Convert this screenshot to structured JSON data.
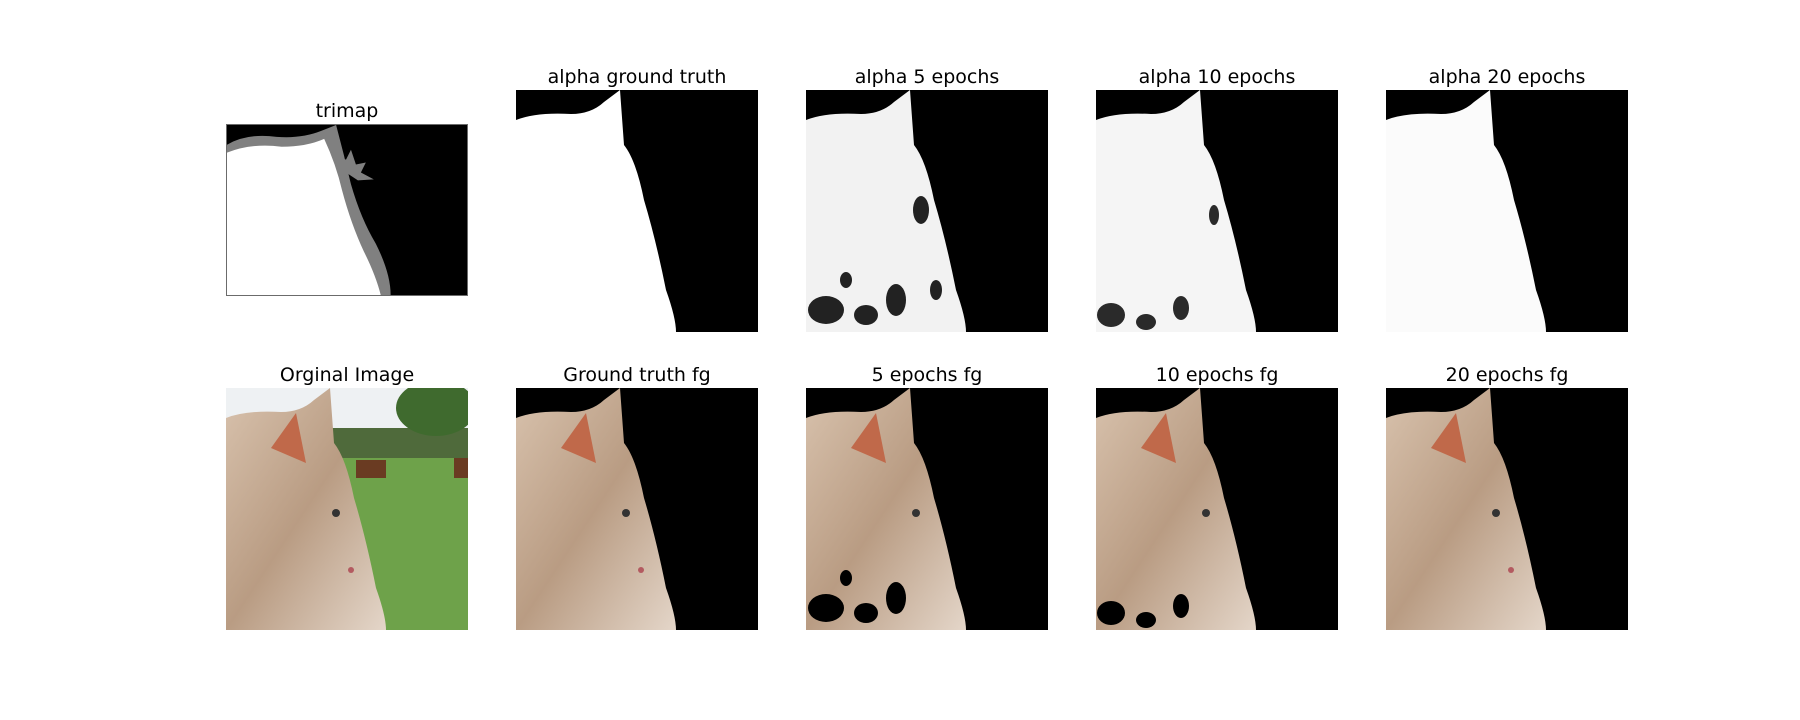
{
  "figure": {
    "row1": [
      {
        "title": "trimap",
        "kind": "trimap"
      },
      {
        "title": "alpha ground truth",
        "kind": "alpha-gt"
      },
      {
        "title": "alpha 5 epochs",
        "kind": "alpha-5"
      },
      {
        "title": "alpha 10 epochs",
        "kind": "alpha-10"
      },
      {
        "title": "alpha 20 epochs",
        "kind": "alpha-20"
      }
    ],
    "row2": [
      {
        "title": "Orginal Image",
        "kind": "original"
      },
      {
        "title": "Ground truth fg",
        "kind": "fg-gt"
      },
      {
        "title": "5 epochs fg",
        "kind": "fg-5"
      },
      {
        "title": "10 epochs fg",
        "kind": "fg-10"
      },
      {
        "title": "20 epochs fg",
        "kind": "fg-20"
      }
    ]
  }
}
